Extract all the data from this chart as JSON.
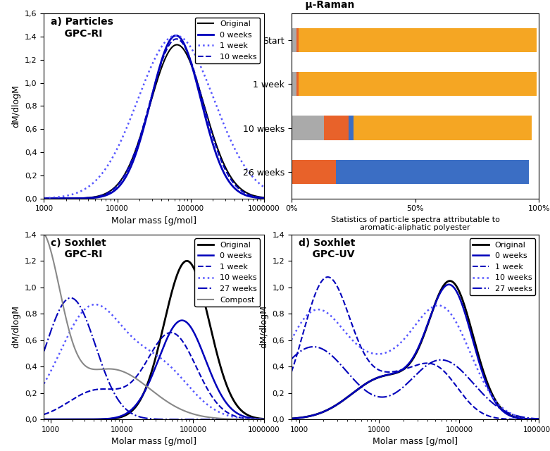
{
  "panel_a": {
    "title": "a) Particles\n    GPC-RI",
    "xlabel": "Molar mass [g/mol]",
    "ylabel": "dM/dlogM",
    "ylim": [
      0,
      1.6
    ],
    "yticks": [
      0.0,
      0.2,
      0.4,
      0.6,
      0.8,
      1.0,
      1.2,
      1.4,
      1.6
    ],
    "ytick_labels": [
      "0,0",
      "0,2",
      "0,4",
      "0,6",
      "0,8",
      "1,0",
      "1,2",
      "1,4",
      "1,6"
    ],
    "xlim_log": [
      1000,
      1000000
    ]
  },
  "panel_b": {
    "title": "b) Particles\n    μ-Raman",
    "xlabel": "Statistics of particle spectra attributable to\naromatic-aliphatic polyester",
    "categories": [
      "Start",
      "1 week",
      "10 weeks",
      "26 weeks"
    ],
    "data_100pla": [
      0.96,
      0.96,
      0.72,
      0.0
    ],
    "data_50pla": [
      0.02,
      0.02,
      0.13,
      0.0
    ],
    "data_20pla": [
      0.01,
      0.01,
      0.1,
      0.18
    ],
    "data_nopla": [
      0.0,
      0.0,
      0.02,
      0.78
    ],
    "color_100pla": "#F5A623",
    "color_50pla": "#AAAAAA",
    "color_20pla": "#E8622A",
    "color_nopla": "#3B6EC4"
  },
  "panel_c": {
    "title": "c) Soxhlet\n    GPC-RI",
    "xlabel": "Molar mass [g/mol]",
    "ylabel": "dM/dlogM",
    "ylim": [
      0,
      1.4
    ],
    "yticks": [
      0.0,
      0.2,
      0.4,
      0.6,
      0.8,
      1.0,
      1.2,
      1.4
    ],
    "ytick_labels": [
      "0,0",
      "0,2",
      "0,4",
      "0,6",
      "0,8",
      "1,0",
      "1,2",
      "1,4"
    ],
    "xlim_log": [
      800,
      1000000
    ]
  },
  "panel_d": {
    "title": "d) Soxhlet\n    GPC-UV",
    "xlabel": "Molar mass [g/mol]",
    "ylabel": "dM/dlogM",
    "ylim": [
      0,
      1.4
    ],
    "yticks": [
      0.0,
      0.2,
      0.4,
      0.6,
      0.8,
      1.0,
      1.2,
      1.4
    ],
    "ytick_labels": [
      "0,0",
      "0,2",
      "0,4",
      "0,6",
      "0,8",
      "1,0",
      "1,2",
      "1,4"
    ],
    "xlim_log": [
      800,
      1000000
    ]
  }
}
